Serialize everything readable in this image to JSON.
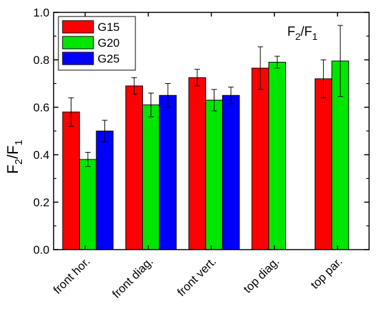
{
  "chart_data": {
    "type": "bar",
    "categories": [
      "front hor.",
      "front diag.",
      "front vert.",
      "top diag.",
      "top par."
    ],
    "ylabel": {
      "main": "F",
      "sub1": "2",
      "sep": "/F",
      "sub2": "1"
    },
    "ylim": [
      0.0,
      1.0
    ],
    "yticks": [
      "0.0",
      "0.2",
      "0.4",
      "0.6",
      "0.8",
      "1.0"
    ],
    "annotation": {
      "main": "F",
      "sub1": "2",
      "sep": "/F",
      "sub2": "1"
    },
    "legend_position": "top-left",
    "grid": false,
    "series": [
      {
        "name": "G15",
        "color": "#ff0000",
        "values": [
          0.58,
          0.69,
          0.725,
          0.765,
          0.72
        ],
        "errors": [
          0.06,
          0.035,
          0.035,
          0.09,
          0.08
        ]
      },
      {
        "name": "G20",
        "color": "#00e600",
        "values": [
          0.38,
          0.61,
          0.63,
          0.79,
          0.795
        ],
        "errors": [
          0.03,
          0.05,
          0.045,
          0.025,
          0.15
        ]
      },
      {
        "name": "G25",
        "color": "#0000ff",
        "values": [
          0.5,
          0.65,
          0.65,
          null,
          null
        ],
        "errors": [
          0.045,
          0.05,
          0.035,
          null,
          null
        ]
      }
    ]
  }
}
